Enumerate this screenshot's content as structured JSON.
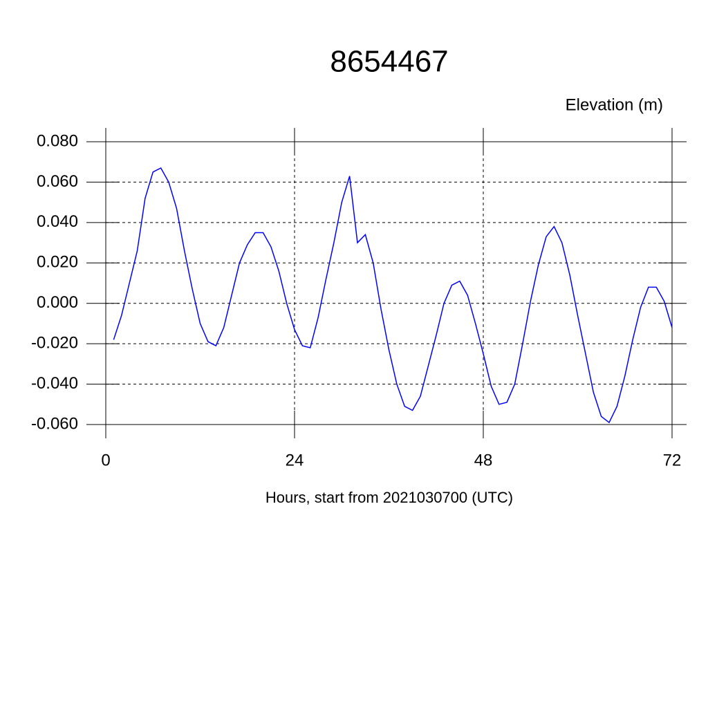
{
  "chart_data": {
    "type": "line",
    "title": "8654467",
    "y_label": "Elevation (m)",
    "x_label": "Hours, start from 2021030700 (UTC)",
    "x": [
      1,
      2,
      3,
      4,
      5,
      6,
      7,
      8,
      9,
      10,
      11,
      12,
      13,
      14,
      15,
      16,
      17,
      18,
      19,
      20,
      21,
      22,
      23,
      24,
      25,
      26,
      27,
      28,
      29,
      30,
      31,
      32,
      33,
      34,
      35,
      36,
      37,
      38,
      39,
      40,
      41,
      42,
      43,
      44,
      45,
      46,
      47,
      48,
      49,
      50,
      51,
      52,
      53,
      54,
      55,
      56,
      57,
      58,
      59,
      60,
      61,
      62,
      63,
      64,
      65,
      66,
      67,
      68,
      69,
      70,
      71,
      72
    ],
    "series": [
      {
        "color": "#0000ff",
        "values": [
          -0.018,
          -0.006,
          0.01,
          0.026,
          0.052,
          0.065,
          0.067,
          0.06,
          0.047,
          0.026,
          0.007,
          -0.01,
          -0.019,
          -0.021,
          -0.012,
          0.004,
          0.02,
          0.029,
          0.035,
          0.035,
          0.028,
          0.016,
          0.0,
          -0.013,
          -0.021,
          -0.022,
          -0.007,
          0.012,
          0.03,
          0.05,
          0.063,
          0.03,
          0.034,
          0.02,
          -0.003,
          -0.023,
          -0.04,
          -0.051,
          -0.053,
          -0.046,
          -0.031,
          -0.016,
          0.0,
          0.009,
          0.011,
          0.004,
          -0.01,
          -0.025,
          -0.041,
          -0.05,
          -0.049,
          -0.04,
          -0.02,
          0.001,
          0.019,
          0.033,
          0.038,
          0.03,
          0.014,
          -0.006,
          -0.025,
          -0.044,
          -0.056,
          -0.059,
          -0.051,
          -0.036,
          -0.018,
          -0.002,
          0.008,
          0.008,
          0.001,
          -0.012
        ]
      }
    ],
    "xlim": [
      0,
      72
    ],
    "xticks": [
      0,
      24,
      48,
      72
    ],
    "ylim": [
      -0.06,
      0.08
    ],
    "yticks": [
      {
        "value": -0.06,
        "label": "-0.060"
      },
      {
        "value": -0.04,
        "label": "-0.040"
      },
      {
        "value": -0.02,
        "label": "-0.020"
      },
      {
        "value": 0,
        "label": "0.000"
      },
      {
        "value": 0.02,
        "label": "0.020"
      },
      {
        "value": 0.04,
        "label": "0.040"
      },
      {
        "value": 0.06,
        "label": "0.060"
      },
      {
        "value": 0.08,
        "label": "0.080"
      }
    ],
    "grid": true
  }
}
